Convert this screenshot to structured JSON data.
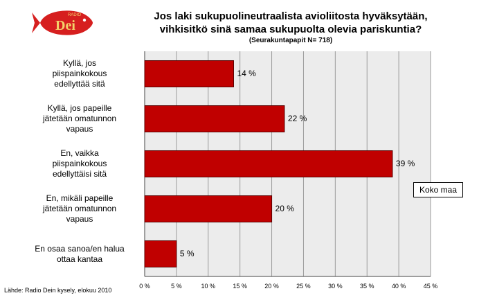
{
  "logo": {
    "top_text": "RADIO",
    "name": "Dei"
  },
  "chart_data": {
    "type": "bar",
    "orientation": "horizontal",
    "title": "Jos laki sukupuolineutraalista avioliitosta hyväksytään,\nvihkisitkö sinä samaa sukupuolta olevia pariskuntia?",
    "subtitle": "(Seurakuntapapit N= 718)",
    "categories": [
      "Kyllä, jos\npiispainkokous\nedellyttää sitä",
      "Kyllä, jos papeille\njätetään omatunnon\nvapaus",
      "En, vaikka\npiispainkokous\nedellyttäisi sitä",
      "En, mikäli papeille\njätetään omatunnon\nvapaus",
      "En osaa sanoa/en halua\nottaa kantaa"
    ],
    "series": [
      {
        "name": "Koko maa",
        "values": [
          14,
          22,
          39,
          20,
          5
        ]
      }
    ],
    "value_labels": [
      "14 %",
      "22 %",
      "39 %",
      "20 %",
      "5 %"
    ],
    "xticks": [
      "0 %",
      "5 %",
      "10 %",
      "15 %",
      "20 %",
      "25 %",
      "30 %",
      "35 %",
      "40 %",
      "45 %"
    ],
    "xlim": [
      0,
      45
    ],
    "grid": true,
    "legend_placement": "right",
    "colors": {
      "bar": "#c00000",
      "bar_border": "#5a0000",
      "plot_bg": "#ececec",
      "grid": "#9a9a9a"
    }
  },
  "source": "Lähde: Radio Dein kysely, elokuu 2010"
}
